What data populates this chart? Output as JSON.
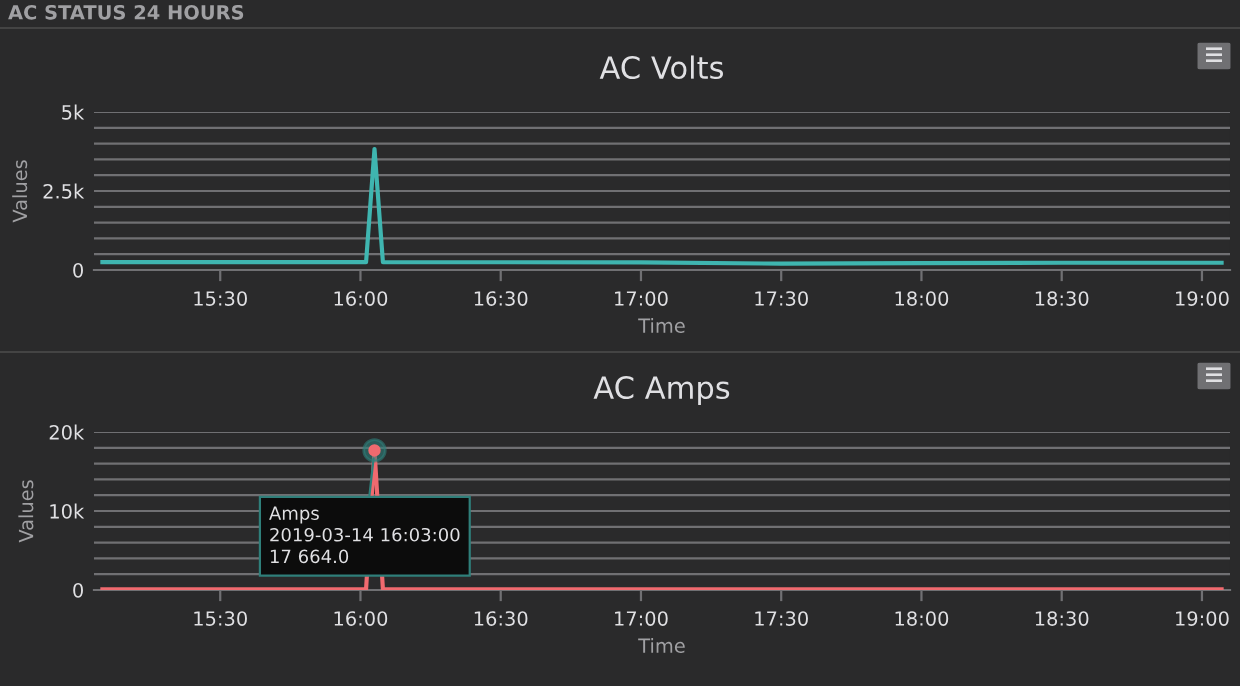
{
  "chart_data": [
    {
      "type": "line",
      "title": "AC Volts",
      "xlabel": "Time",
      "ylabel": "Values",
      "annotations": [
        "AC STATUS 24 HOURS"
      ],
      "x": [
        15.08,
        16.0,
        16.02,
        16.05,
        16.08,
        17.0,
        17.5,
        18.0,
        18.5,
        19.07
      ],
      "series": [
        {
          "color": "#3fb5b0",
          "values": [
            250,
            250,
            250,
            3830,
            250,
            240,
            200,
            220,
            230,
            230
          ]
        }
      ],
      "xlim": [
        15.05,
        19.1
      ],
      "ylim": [
        0,
        5000
      ],
      "xticks": [
        {
          "value": 15.5,
          "label": "15:30"
        },
        {
          "value": 16.0,
          "label": "16:00"
        },
        {
          "value": 16.5,
          "label": "16:30"
        },
        {
          "value": 17.0,
          "label": "17:00"
        },
        {
          "value": 17.5,
          "label": "17:30"
        },
        {
          "value": 18.0,
          "label": "18:00"
        },
        {
          "value": 18.5,
          "label": "18:30"
        },
        {
          "value": 19.0,
          "label": "19:00"
        }
      ],
      "yticks": [
        0,
        {
          "value": 500,
          "label": null
        },
        {
          "value": 1000,
          "label": null
        },
        {
          "value": 1500,
          "label": null
        },
        {
          "value": 2000,
          "label": null
        },
        {
          "value": 2500,
          "label": "2.5k"
        },
        {
          "value": 3000,
          "label": null
        },
        {
          "value": 3500,
          "label": null
        },
        {
          "value": 4000,
          "label": null
        },
        {
          "value": 4500,
          "label": null
        },
        {
          "value": 5000,
          "label": "5k"
        }
      ],
      "grid": "y",
      "legend": false,
      "marker": "none",
      "line_style": "solid"
    },
    {
      "type": "line",
      "title": "AC Amps",
      "xlabel": "Time",
      "ylabel": "Values",
      "annotations": [
        {
          "text": "Amps\n2019-03-14 16:03:00\n17 664.0",
          "x": 16.05,
          "y": 17664
        }
      ],
      "x": [
        15.08,
        16.02,
        16.05,
        16.08,
        19.07
      ],
      "series": [
        {
          "color": "#f06a6f",
          "values": [
            100,
            100,
            17664,
            100,
            100
          ]
        }
      ],
      "xlim": [
        15.05,
        19.1
      ],
      "ylim": [
        0,
        20000
      ],
      "xticks": [
        {
          "value": 15.5,
          "label": "15:30"
        },
        {
          "value": 16.0,
          "label": "16:00"
        },
        {
          "value": 16.5,
          "label": "16:30"
        },
        {
          "value": 17.0,
          "label": "17:00"
        },
        {
          "value": 17.5,
          "label": "17:30"
        },
        {
          "value": 18.0,
          "label": "18:00"
        },
        {
          "value": 18.5,
          "label": "18:30"
        },
        {
          "value": 19.0,
          "label": "19:00"
        }
      ],
      "yticks": [
        0,
        {
          "value": 2000,
          "label": null
        },
        {
          "value": 4000,
          "label": null
        },
        {
          "value": 6000,
          "label": null
        },
        {
          "value": 8000,
          "label": null
        },
        {
          "value": 10000,
          "label": "10k"
        },
        {
          "value": 12000,
          "label": null
        },
        {
          "value": 14000,
          "label": null
        },
        {
          "value": 16000,
          "label": null
        },
        {
          "value": 18000,
          "label": null
        },
        {
          "value": 20000,
          "label": "20k"
        }
      ],
      "grid": "y",
      "legend": false,
      "marker": "none",
      "line_style": "solid"
    }
  ]
}
